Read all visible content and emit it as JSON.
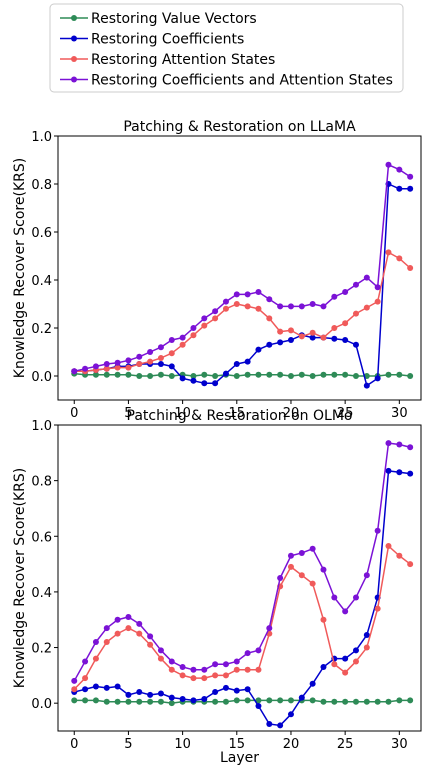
{
  "legend": {
    "location": "top-center",
    "entries": [
      {
        "name": "Restoring Value Vectors",
        "color": "#2e8b57"
      },
      {
        "name": "Restoring Coefficients",
        "color": "#0000cd"
      },
      {
        "name": "Restoring Attention States",
        "color": "#f05a5a"
      },
      {
        "name": "Restoring Coefficients and Attention States",
        "color": "#7b12d6"
      }
    ]
  },
  "chart_data": [
    {
      "type": "line",
      "title": "Patching & Restoration on LLaMA",
      "xlabel": "",
      "ylabel": "Knowledge Recover Score(KRS)",
      "xlim": [
        -1.5,
        32
      ],
      "ylim": [
        -0.1,
        1.0
      ],
      "xticks": [
        0,
        5,
        10,
        15,
        20,
        25,
        30
      ],
      "yticks": [
        0.0,
        0.2,
        0.4,
        0.6,
        0.8,
        1.0
      ],
      "grid": false,
      "x": [
        0,
        1,
        2,
        3,
        4,
        5,
        6,
        7,
        8,
        9,
        10,
        11,
        12,
        13,
        14,
        15,
        16,
        17,
        18,
        19,
        20,
        21,
        22,
        23,
        24,
        25,
        26,
        27,
        28,
        29,
        30,
        31
      ],
      "series": [
        {
          "name": "Restoring Value Vectors",
          "color": "#2e8b57",
          "values": [
            0.01,
            0.005,
            0.005,
            0.005,
            0.005,
            0.005,
            0.0,
            0.0,
            0.005,
            0.0,
            0.005,
            0.0,
            0.005,
            0.0,
            0.005,
            0.0,
            0.005,
            0.005,
            0.005,
            0.005,
            0.0,
            0.005,
            0.0,
            0.005,
            0.005,
            0.005,
            0.0,
            0.0,
            0.0,
            0.005,
            0.005,
            0.0
          ]
        },
        {
          "name": "Restoring Coefficients",
          "color": "#0000cd",
          "values": [
            0.02,
            0.02,
            0.025,
            0.03,
            0.04,
            0.04,
            0.05,
            0.05,
            0.05,
            0.04,
            -0.01,
            -0.02,
            -0.03,
            -0.03,
            0.01,
            0.05,
            0.06,
            0.11,
            0.13,
            0.14,
            0.15,
            0.17,
            0.16,
            0.16,
            0.155,
            0.15,
            0.13,
            -0.04,
            -0.01,
            0.8,
            0.78,
            0.78
          ]
        },
        {
          "name": "Restoring Attention States",
          "color": "#f05a5a",
          "values": [
            0.02,
            0.02,
            0.025,
            0.03,
            0.035,
            0.035,
            0.05,
            0.06,
            0.075,
            0.095,
            0.13,
            0.17,
            0.21,
            0.24,
            0.28,
            0.3,
            0.29,
            0.28,
            0.24,
            0.185,
            0.19,
            0.165,
            0.18,
            0.16,
            0.2,
            0.22,
            0.26,
            0.285,
            0.31,
            0.515,
            0.49,
            0.45
          ]
        },
        {
          "name": "Restoring Coefficients and Attention States",
          "color": "#7b12d6",
          "values": [
            0.02,
            0.03,
            0.04,
            0.05,
            0.055,
            0.065,
            0.08,
            0.1,
            0.12,
            0.15,
            0.16,
            0.2,
            0.24,
            0.27,
            0.31,
            0.34,
            0.34,
            0.35,
            0.32,
            0.29,
            0.29,
            0.29,
            0.3,
            0.29,
            0.33,
            0.35,
            0.38,
            0.41,
            0.37,
            0.88,
            0.86,
            0.83
          ]
        }
      ]
    },
    {
      "type": "line",
      "title": "Patching & Restoration on OLMo",
      "xlabel": "Layer",
      "ylabel": "Knowledge Recover Score(KRS)",
      "xlim": [
        -1.5,
        32
      ],
      "ylim": [
        -0.1,
        1.0
      ],
      "xticks": [
        0,
        5,
        10,
        15,
        20,
        25,
        30
      ],
      "yticks": [
        0.0,
        0.2,
        0.4,
        0.6,
        0.8,
        1.0
      ],
      "grid": false,
      "x": [
        0,
        1,
        2,
        3,
        4,
        5,
        6,
        7,
        8,
        9,
        10,
        11,
        12,
        13,
        14,
        15,
        16,
        17,
        18,
        19,
        20,
        21,
        22,
        23,
        24,
        25,
        26,
        27,
        28,
        29,
        30,
        31
      ],
      "series": [
        {
          "name": "Restoring Value Vectors",
          "color": "#2e8b57",
          "values": [
            0.01,
            0.01,
            0.01,
            0.005,
            0.005,
            0.005,
            0.005,
            0.005,
            0.005,
            0.0,
            0.005,
            0.005,
            0.005,
            0.005,
            0.005,
            0.01,
            0.01,
            0.01,
            0.01,
            0.01,
            0.01,
            0.01,
            0.01,
            0.005,
            0.005,
            0.005,
            0.005,
            0.005,
            0.005,
            0.005,
            0.01,
            0.01
          ]
        },
        {
          "name": "Restoring Coefficients",
          "color": "#0000cd",
          "values": [
            0.04,
            0.05,
            0.06,
            0.055,
            0.06,
            0.03,
            0.04,
            0.03,
            0.035,
            0.02,
            0.015,
            0.01,
            0.015,
            0.04,
            0.055,
            0.045,
            0.05,
            -0.01,
            -0.075,
            -0.08,
            -0.04,
            0.02,
            0.07,
            0.13,
            0.16,
            0.16,
            0.19,
            0.245,
            0.38,
            0.835,
            0.83,
            0.825
          ]
        },
        {
          "name": "Restoring Attention States",
          "color": "#f05a5a",
          "values": [
            0.05,
            0.09,
            0.16,
            0.22,
            0.25,
            0.27,
            0.25,
            0.21,
            0.16,
            0.12,
            0.1,
            0.09,
            0.09,
            0.1,
            0.1,
            0.12,
            0.12,
            0.12,
            0.25,
            0.42,
            0.49,
            0.46,
            0.43,
            0.3,
            0.14,
            0.11,
            0.15,
            0.2,
            0.34,
            0.565,
            0.53,
            0.5
          ]
        },
        {
          "name": "Restoring Coefficients and Attention States",
          "color": "#7b12d6",
          "values": [
            0.08,
            0.15,
            0.22,
            0.27,
            0.3,
            0.31,
            0.285,
            0.24,
            0.19,
            0.15,
            0.13,
            0.12,
            0.12,
            0.14,
            0.14,
            0.15,
            0.18,
            0.19,
            0.27,
            0.45,
            0.53,
            0.54,
            0.555,
            0.48,
            0.38,
            0.33,
            0.38,
            0.46,
            0.62,
            0.935,
            0.93,
            0.92
          ]
        }
      ]
    }
  ]
}
